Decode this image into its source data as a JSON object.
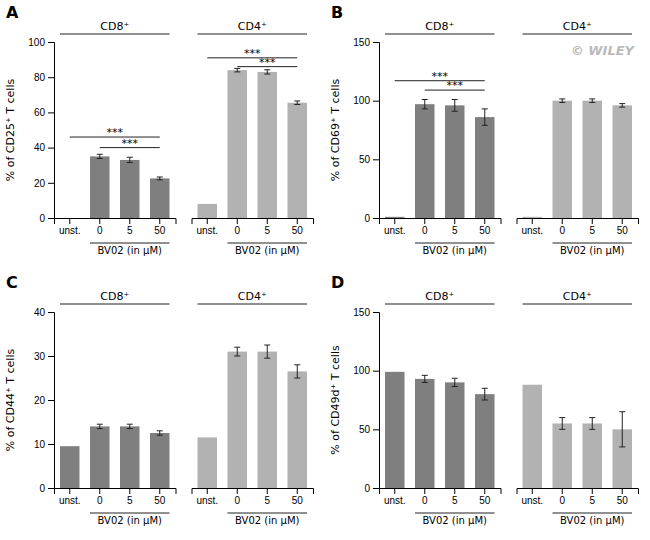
{
  "chart_data": [
    {
      "type": "bar",
      "title": "A",
      "y_label": "% of CD25⁺ T cells",
      "categories": [
        "unst.",
        "0",
        "5",
        "50",
        "unst.",
        "0",
        "5",
        "50"
      ],
      "values": [
        0,
        35,
        33,
        22.5,
        8,
        84,
        83,
        65.5
      ],
      "errors": [
        null,
        1.2,
        1.5,
        0.8,
        null,
        1.0,
        1.2,
        1.0
      ],
      "colors": [
        "#7f7f7f",
        "#7f7f7f",
        "#7f7f7f",
        "#7f7f7f",
        "#b2b2b2",
        "#b2b2b2",
        "#b2b2b2",
        "#b2b2b2"
      ],
      "ylim": [
        0,
        100
      ],
      "yticks": [
        0,
        20,
        40,
        60,
        80,
        100
      ],
      "grid": false,
      "annotations": [
        {
          "kind": "group",
          "text": "CD8⁺",
          "x": [
            0,
            3
          ]
        },
        {
          "kind": "group",
          "text": "CD4⁺",
          "x": [
            4,
            7
          ]
        },
        {
          "kind": "bracket",
          "text": "BV02 (in μM)",
          "x": [
            1,
            3
          ]
        },
        {
          "kind": "bracket",
          "text": "BV02 (in μM)",
          "x": [
            5,
            7
          ]
        },
        {
          "kind": "significance",
          "text": "***",
          "x": [
            0,
            3
          ],
          "y": 46
        },
        {
          "kind": "significance",
          "text": "***",
          "x": [
            1,
            3
          ],
          "y": 40
        },
        {
          "kind": "significance",
          "text": "***",
          "x": [
            4,
            7
          ],
          "y": 91
        },
        {
          "kind": "significance",
          "text": "***",
          "x": [
            5,
            7
          ],
          "y": 86
        }
      ]
    },
    {
      "type": "bar",
      "title": "B",
      "y_label": "% of CD69⁺ T cells",
      "categories": [
        "unst.",
        "0",
        "5",
        "50",
        "unst.",
        "0",
        "5",
        "50"
      ],
      "values": [
        1,
        97,
        96,
        86,
        1,
        100,
        100,
        96
      ],
      "errors": [
        null,
        4.0,
        5.0,
        7.0,
        null,
        1.5,
        1.5,
        1.5
      ],
      "colors": [
        "#7f7f7f",
        "#7f7f7f",
        "#7f7f7f",
        "#7f7f7f",
        "#b2b2b2",
        "#b2b2b2",
        "#b2b2b2",
        "#b2b2b2"
      ],
      "ylim": [
        0,
        150
      ],
      "yticks": [
        0,
        50,
        100,
        150
      ],
      "grid": false,
      "annotations": [
        {
          "kind": "group",
          "text": "CD8⁺",
          "x": [
            0,
            3
          ]
        },
        {
          "kind": "group",
          "text": "CD4⁺",
          "x": [
            4,
            7
          ]
        },
        {
          "kind": "bracket",
          "text": "BV02 (in μM)",
          "x": [
            1,
            3
          ]
        },
        {
          "kind": "bracket",
          "text": "BV02 (in μM)",
          "x": [
            5,
            7
          ]
        },
        {
          "kind": "significance",
          "text": "***",
          "x": [
            0,
            3
          ],
          "y": 117
        },
        {
          "kind": "significance",
          "text": "***",
          "x": [
            1,
            3
          ],
          "y": 109
        },
        {
          "kind": "watermark",
          "text": "© WILEY",
          "color": "#bbbbbb"
        }
      ]
    },
    {
      "type": "bar",
      "title": "C",
      "y_label": "% of CD44⁺ T cells",
      "categories": [
        "unst.",
        "0",
        "5",
        "50",
        "unst.",
        "0",
        "5",
        "50"
      ],
      "values": [
        9.5,
        14,
        14,
        12.5,
        11.5,
        31,
        31,
        26.5
      ],
      "errors": [
        null,
        0.5,
        0.5,
        0.5,
        null,
        1.0,
        1.5,
        1.5
      ],
      "colors": [
        "#7f7f7f",
        "#7f7f7f",
        "#7f7f7f",
        "#7f7f7f",
        "#b2b2b2",
        "#b2b2b2",
        "#b2b2b2",
        "#b2b2b2"
      ],
      "ylim": [
        0,
        40
      ],
      "yticks": [
        0,
        10,
        20,
        30,
        40
      ],
      "grid": false,
      "annotations": [
        {
          "kind": "group",
          "text": "CD8⁺",
          "x": [
            0,
            3
          ]
        },
        {
          "kind": "group",
          "text": "CD4⁺",
          "x": [
            4,
            7
          ]
        },
        {
          "kind": "bracket",
          "text": "BV02 (in μM)",
          "x": [
            1,
            3
          ]
        },
        {
          "kind": "bracket",
          "text": "BV02 (in μM)",
          "x": [
            5,
            7
          ]
        }
      ]
    },
    {
      "type": "bar",
      "title": "D",
      "y_label": "% of CD49d⁺ T cells",
      "categories": [
        "unst.",
        "0",
        "5",
        "50",
        "unst.",
        "0",
        "5",
        "50"
      ],
      "values": [
        99,
        93,
        90,
        80,
        88,
        55,
        55,
        50
      ],
      "errors": [
        null,
        3.0,
        3.5,
        5.0,
        null,
        5.0,
        5.0,
        15.0
      ],
      "colors": [
        "#7f7f7f",
        "#7f7f7f",
        "#7f7f7f",
        "#7f7f7f",
        "#b2b2b2",
        "#b2b2b2",
        "#b2b2b2",
        "#b2b2b2"
      ],
      "ylim": [
        0,
        150
      ],
      "yticks": [
        0,
        50,
        100,
        150
      ],
      "grid": false,
      "annotations": [
        {
          "kind": "group",
          "text": "CD8⁺",
          "x": [
            0,
            3
          ]
        },
        {
          "kind": "group",
          "text": "CD4⁺",
          "x": [
            4,
            7
          ]
        },
        {
          "kind": "bracket",
          "text": "BV02 (in μM)",
          "x": [
            1,
            3
          ]
        },
        {
          "kind": "bracket",
          "text": "BV02 (in μM)",
          "x": [
            5,
            7
          ]
        }
      ]
    }
  ]
}
